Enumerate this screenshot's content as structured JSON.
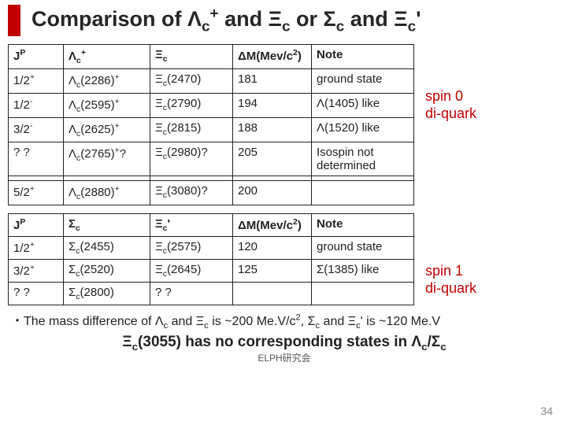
{
  "title_html": "Comparison of Λ<sub>c</sub><sup>+</sup> and Ξ<sub>c</sub> or Σ<sub>c</sub> and Ξ<sub>c</sub>'",
  "table1": {
    "headers": [
      "J<sup>P</sup>",
      "Λ<sub>c</sub><sup>+</sup>",
      "Ξ<sub>c</sub>",
      "ΔM(Mev/c<sup>2</sup>)",
      "Note"
    ],
    "rows": [
      [
        "1/2<sup>+</sup>",
        "Λ<sub>c</sub>(2286)<sup>+</sup>",
        "Ξ<sub>c</sub>(2470)",
        "181",
        "ground state"
      ],
      [
        "1/2<sup>-</sup>",
        "Λ<sub>c</sub>(2595)<sup>+</sup>",
        "Ξ<sub>c</sub>(2790)",
        "194",
        "Λ(1405) like"
      ],
      [
        "3/2<sup>-</sup>",
        "Λ<sub>c</sub>(2625)<sup>+</sup>",
        "Ξ<sub>c</sub>(2815)",
        "188",
        "Λ(1520) like"
      ],
      [
        "? ?",
        "Λ<sub>c</sub>(2765)<sup>+</sup>?",
        "Ξ<sub>c</sub>(2980)?",
        "205",
        "Isospin not determined"
      ],
      [
        "5/2<sup>+</sup>",
        "Λ<sub>c</sub>(2880)<sup>+</sup>",
        "Ξ<sub>c</sub>(3080)?",
        "200",
        ""
      ]
    ]
  },
  "table2": {
    "headers": [
      "J<sup>P</sup>",
      "Σ<sub>c</sub>",
      "Ξ<sub>c</sub>'",
      "ΔM(Mev/c<sup>2</sup>)",
      "Note"
    ],
    "rows": [
      [
        "1/2<sup>+</sup>",
        "Σ<sub>c</sub>(2455)",
        "Ξ<sub>c</sub>(2575)",
        "120",
        "ground state"
      ],
      [
        "3/2<sup>+</sup>",
        "Σ<sub>c</sub>(2520)",
        "Ξ<sub>c</sub>(2645)",
        "125",
        "Σ(1385) like"
      ],
      [
        "? ?",
        "Σ<sub>c</sub>(2800)",
        "? ?",
        "",
        ""
      ]
    ]
  },
  "side1": "spin 0<br>di-quark",
  "side2": "spin 1<br>di-quark",
  "footnote1_html": "・The mass difference of Λ<sub>c</sub> and Ξ<sub>c</sub> is ~200 Me.V/c<sup>2</sup>, Σ<sub>c</sub> and Ξ<sub>c</sub>' is ~120 Me.V",
  "footnote2_html": "Ξ<sub>c</sub>(3055) has no corresponding states in Λ<sub>c</sub>/Σ<sub>c</sub>",
  "footnote3": "ELPH研究会",
  "page": "34",
  "colors": {
    "accent": "#c00000"
  }
}
